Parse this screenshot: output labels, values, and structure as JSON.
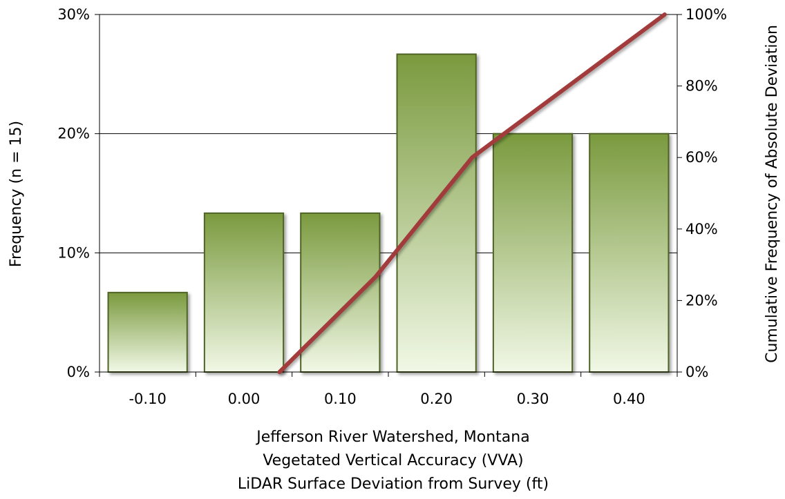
{
  "chart_data": {
    "type": "bar+line",
    "categories": [
      "-0.10",
      "0.00",
      "0.10",
      "0.20",
      "0.30",
      "0.40"
    ],
    "series": [
      {
        "type": "bar",
        "axis": "left",
        "values": [
          6.67,
          13.33,
          13.33,
          26.67,
          20.0,
          20.0
        ]
      },
      {
        "type": "line",
        "axis": "right",
        "x": [
          0.0,
          0.1,
          0.2,
          0.3,
          0.4
        ],
        "values": [
          0,
          26.7,
          60,
          80,
          100
        ]
      }
    ],
    "y_left": {
      "label": "Frequency (n = 15)",
      "range": [
        0,
        30
      ],
      "ticks": [
        "0%",
        "10%",
        "20%",
        "30%"
      ]
    },
    "y_right": {
      "label": "Cumulative Frequency of Absolute Deviation",
      "range": [
        0,
        100
      ],
      "ticks": [
        "0%",
        "20%",
        "40%",
        "60%",
        "80%",
        "100%"
      ]
    },
    "xlabel_lines": [
      "Jefferson River Watershed, Montana",
      "Vegetated Vertical Accuracy (VVA)",
      "LiDAR Surface Deviation from Survey (ft)"
    ],
    "grid": "horizontal",
    "colors": {
      "bar_top": "#7a9a3e",
      "bar_bottom": "#f1f8e6",
      "bar_border": "#4f6428",
      "line": "#a23a3a"
    }
  }
}
